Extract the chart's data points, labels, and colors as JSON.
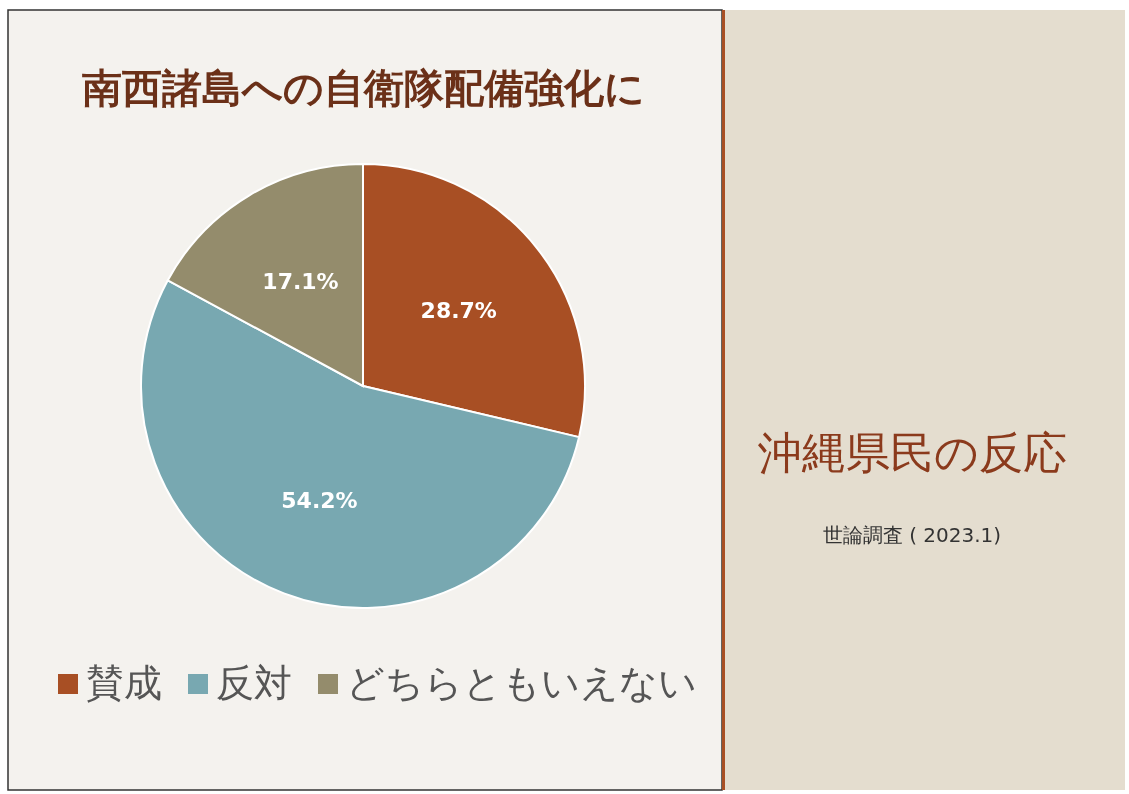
{
  "chart_data": {
    "type": "pie",
    "title": "南西諸島への自衛隊配備強化に",
    "subtitle": "沖縄県民の反応",
    "annotations": [
      "世論調査 ( 2023.1)"
    ],
    "categories": [
      "賛成",
      "反対",
      "どちらともいえない"
    ],
    "values": [
      28.7,
      54.2,
      17.1
    ],
    "colors": [
      "#a84f24",
      "#78a8b1",
      "#948c6c"
    ],
    "value_labels": [
      "28.7%",
      "54.2%",
      "17.1%"
    ],
    "legend": "bottom"
  }
}
